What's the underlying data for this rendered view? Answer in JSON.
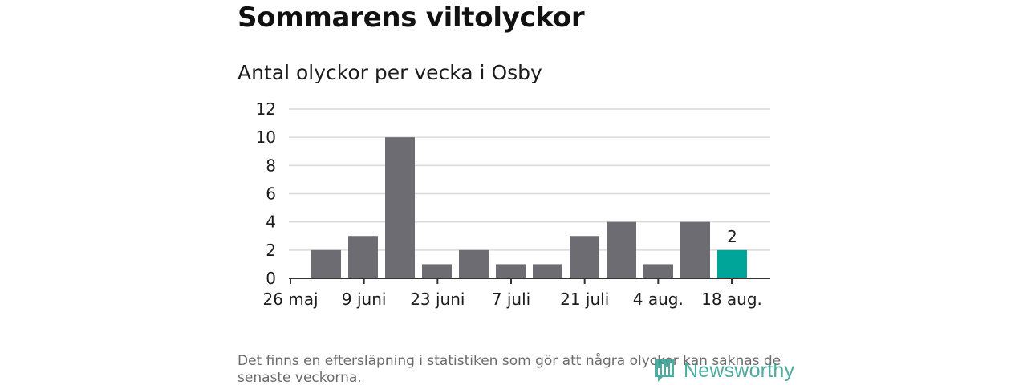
{
  "header": {
    "title": "Sommarens viltolyckor",
    "subtitle": "Antal olyckor per vecka i Osby"
  },
  "footnote": "Det finns en eftersläpning i statistiken som gör att några olyckor kan saknas de senaste veckorna.",
  "brand": {
    "name": "Newsworthy"
  },
  "colors": {
    "bar": "#6d6c72",
    "highlight": "#00a59a",
    "grid": "#d9d9d9",
    "axis": "#333333",
    "text": "#1c1c1c"
  },
  "chart_data": {
    "type": "bar",
    "title": "Antal olyckor per vecka i Osby",
    "xlabel": "",
    "ylabel": "",
    "ylim": [
      0,
      12
    ],
    "yticks": [
      "0",
      "2",
      "4",
      "6",
      "8",
      "10",
      "12"
    ],
    "xtick_labels": [
      "26 maj",
      "9 juni",
      "23 juni",
      "7 juli",
      "21 juli",
      "4 aug.",
      "18 aug."
    ],
    "values": [
      2,
      3,
      10,
      1,
      2,
      1,
      1,
      3,
      4,
      1,
      4,
      2
    ],
    "highlight_index": 11,
    "highlight_label": "2",
    "grid": true,
    "legend": "none"
  }
}
